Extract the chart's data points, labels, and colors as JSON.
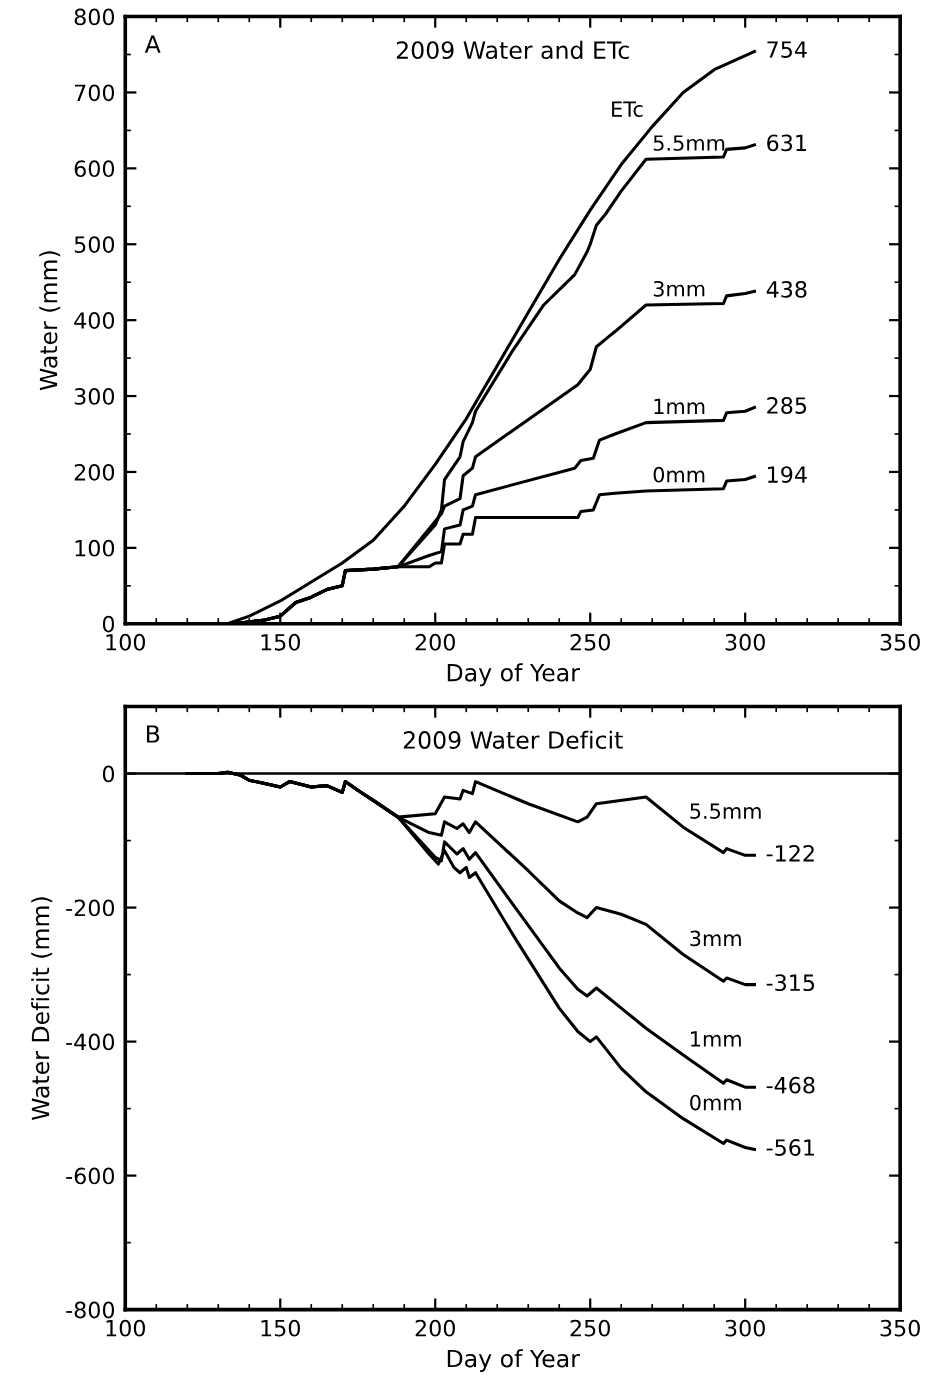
{
  "chart_data": [
    {
      "type": "line",
      "title": "2009 Water and ETc",
      "xlabel": "Day of Year",
      "ylabel": "Water (mm)",
      "xlim": [
        100,
        350
      ],
      "xticks": [
        100,
        150,
        200,
        250,
        300,
        350
      ],
      "ylim": [
        0,
        800
      ],
      "yticks": [
        0,
        100,
        200,
        300,
        400,
        500,
        600,
        700,
        800
      ],
      "grid": false,
      "legend": false,
      "marker": "none",
      "line_style": "solid",
      "annotations": [
        "A"
      ],
      "series": [
        {
          "name": "ETc",
          "color": "#000000",
          "x": [
            133,
            140,
            150,
            160,
            170,
            180,
            190,
            200,
            210,
            220,
            230,
            240,
            250,
            260,
            270,
            280,
            290,
            303
          ],
          "values": [
            0,
            10,
            30,
            55,
            80,
            110,
            155,
            210,
            270,
            340,
            410,
            480,
            545,
            605,
            655,
            700,
            730,
            754
          ],
          "value_labels": [
            null,
            null,
            null,
            null,
            null,
            null,
            null,
            null,
            null,
            null,
            null,
            null,
            null,
            null,
            null,
            null,
            null,
            "754"
          ]
        },
        {
          "name": "5.5mm",
          "color": "#000000",
          "x": [
            120,
            135,
            145,
            150,
            155,
            160,
            165,
            170,
            171,
            180,
            188,
            200,
            202,
            203,
            208,
            209,
            212,
            213,
            225,
            235,
            245,
            249,
            250,
            252,
            255,
            260,
            268,
            293,
            294,
            300,
            303
          ],
          "values": [
            0,
            0,
            5,
            10,
            28,
            35,
            45,
            50,
            70,
            72,
            75,
            130,
            150,
            190,
            220,
            240,
            265,
            280,
            360,
            420,
            460,
            490,
            500,
            525,
            540,
            570,
            612,
            615,
            625,
            627,
            631
          ],
          "value_labels": [
            null,
            null,
            null,
            null,
            null,
            null,
            null,
            null,
            null,
            null,
            null,
            null,
            null,
            null,
            null,
            null,
            null,
            null,
            null,
            null,
            null,
            null,
            null,
            null,
            null,
            null,
            null,
            null,
            null,
            null,
            "631"
          ]
        },
        {
          "name": "3mm",
          "color": "#000000",
          "x": [
            120,
            135,
            145,
            150,
            155,
            160,
            165,
            170,
            171,
            180,
            188,
            202,
            203,
            208,
            209,
            212,
            213,
            246,
            248,
            250,
            252,
            255,
            258,
            268,
            293,
            294,
            300,
            303
          ],
          "values": [
            0,
            0,
            5,
            10,
            28,
            35,
            45,
            50,
            70,
            72,
            75,
            145,
            155,
            165,
            195,
            205,
            220,
            315,
            325,
            335,
            365,
            375,
            385,
            420,
            422,
            432,
            435,
            438
          ],
          "value_labels": [
            null,
            null,
            null,
            null,
            null,
            null,
            null,
            null,
            null,
            null,
            null,
            null,
            null,
            null,
            null,
            null,
            null,
            null,
            null,
            null,
            null,
            null,
            null,
            null,
            null,
            null,
            null,
            "438"
          ]
        },
        {
          "name": "1mm",
          "color": "#000000",
          "x": [
            120,
            135,
            145,
            150,
            155,
            160,
            165,
            170,
            171,
            180,
            188,
            198,
            202,
            203,
            208,
            209,
            212,
            213,
            245,
            247,
            251,
            253,
            258,
            268,
            293,
            294,
            300,
            303
          ],
          "values": [
            0,
            0,
            5,
            10,
            28,
            35,
            45,
            50,
            70,
            72,
            75,
            90,
            95,
            125,
            130,
            150,
            155,
            170,
            205,
            215,
            218,
            242,
            250,
            265,
            268,
            278,
            280,
            285
          ],
          "value_labels": [
            null,
            null,
            null,
            null,
            null,
            null,
            null,
            null,
            null,
            null,
            null,
            null,
            null,
            null,
            null,
            null,
            null,
            null,
            null,
            null,
            null,
            null,
            null,
            null,
            null,
            null,
            null,
            "285"
          ]
        },
        {
          "name": "0mm",
          "color": "#000000",
          "x": [
            120,
            135,
            145,
            150,
            155,
            160,
            165,
            170,
            171,
            180,
            188,
            198,
            200,
            202,
            203,
            208,
            209,
            212,
            213,
            246,
            247,
            251,
            253,
            258,
            268,
            293,
            294,
            300,
            303
          ],
          "values": [
            0,
            0,
            5,
            10,
            28,
            35,
            45,
            50,
            70,
            72,
            75,
            75,
            80,
            80,
            105,
            105,
            118,
            118,
            140,
            140,
            148,
            150,
            170,
            172,
            175,
            178,
            188,
            190,
            194
          ],
          "value_labels": [
            null,
            null,
            null,
            null,
            null,
            null,
            null,
            null,
            null,
            null,
            null,
            null,
            null,
            null,
            null,
            null,
            null,
            null,
            null,
            null,
            null,
            null,
            null,
            null,
            null,
            null,
            null,
            null,
            "194"
          ]
        }
      ]
    },
    {
      "type": "line",
      "title": "2009 Water Deficit",
      "xlabel": "Day of Year",
      "ylabel": "Water Deficit (mm)",
      "xlim": [
        100,
        350
      ],
      "xticks": [
        100,
        150,
        200,
        250,
        300,
        350
      ],
      "ylim": [
        -800,
        100
      ],
      "yticks": [
        -800,
        -600,
        -400,
        -200,
        0
      ],
      "grid": false,
      "legend": false,
      "marker": "none",
      "line_style": "solid",
      "ref_lines": [
        {
          "axis": "y",
          "value": 0,
          "color": "#000000"
        }
      ],
      "annotations": [
        "B"
      ],
      "series": [
        {
          "name": "5.5mm",
          "color": "#000000",
          "x": [
            120,
            130,
            133,
            137,
            140,
            145,
            150,
            153,
            160,
            165,
            170,
            171,
            175,
            180,
            188,
            200,
            203,
            208,
            209,
            212,
            213,
            230,
            246,
            249,
            252,
            268,
            280,
            293,
            294,
            300,
            303
          ],
          "values": [
            0,
            0,
            2,
            -2,
            -10,
            -15,
            -20,
            -12,
            -20,
            -18,
            -28,
            -12,
            -25,
            -40,
            -65,
            -60,
            -35,
            -38,
            -25,
            -30,
            -12,
            -45,
            -72,
            -65,
            -45,
            -35,
            -80,
            -118,
            -112,
            -122,
            -122
          ],
          "value_labels": [
            null,
            null,
            null,
            null,
            null,
            null,
            null,
            null,
            null,
            null,
            null,
            null,
            null,
            null,
            null,
            null,
            null,
            null,
            null,
            null,
            null,
            null,
            null,
            null,
            null,
            null,
            null,
            null,
            null,
            null,
            "-122"
          ]
        },
        {
          "name": "3mm",
          "color": "#000000",
          "x": [
            120,
            130,
            133,
            137,
            140,
            145,
            150,
            153,
            160,
            165,
            170,
            171,
            175,
            180,
            188,
            198,
            202,
            203,
            207,
            209,
            211,
            213,
            230,
            240,
            246,
            249,
            252,
            260,
            268,
            280,
            293,
            294,
            300,
            303
          ],
          "values": [
            0,
            0,
            2,
            -2,
            -10,
            -15,
            -20,
            -12,
            -20,
            -18,
            -28,
            -12,
            -25,
            -40,
            -65,
            -88,
            -92,
            -72,
            -82,
            -75,
            -88,
            -72,
            -145,
            -190,
            -208,
            -215,
            -200,
            -210,
            -225,
            -270,
            -310,
            -305,
            -315,
            -315
          ],
          "value_labels": [
            null,
            null,
            null,
            null,
            null,
            null,
            null,
            null,
            null,
            null,
            null,
            null,
            null,
            null,
            null,
            null,
            null,
            null,
            null,
            null,
            null,
            null,
            null,
            null,
            null,
            null,
            null,
            null,
            null,
            null,
            null,
            null,
            null,
            "-315"
          ]
        },
        {
          "name": "1mm",
          "color": "#000000",
          "x": [
            120,
            130,
            133,
            137,
            140,
            145,
            150,
            153,
            160,
            165,
            170,
            171,
            175,
            180,
            188,
            200,
            202,
            203,
            207,
            209,
            211,
            213,
            225,
            240,
            246,
            249,
            252,
            260,
            268,
            280,
            293,
            294,
            300,
            303
          ],
          "values": [
            0,
            0,
            2,
            -2,
            -10,
            -15,
            -20,
            -12,
            -20,
            -18,
            -28,
            -12,
            -25,
            -40,
            -65,
            -125,
            -130,
            -102,
            -120,
            -112,
            -128,
            -118,
            -195,
            -290,
            -322,
            -332,
            -320,
            -350,
            -380,
            -420,
            -462,
            -457,
            -468,
            -468
          ],
          "value_labels": [
            null,
            null,
            null,
            null,
            null,
            null,
            null,
            null,
            null,
            null,
            null,
            null,
            null,
            null,
            null,
            null,
            null,
            null,
            null,
            null,
            null,
            null,
            null,
            null,
            null,
            null,
            null,
            null,
            null,
            null,
            null,
            null,
            null,
            "-468"
          ]
        },
        {
          "name": "0mm",
          "color": "#000000",
          "x": [
            120,
            130,
            133,
            137,
            140,
            145,
            150,
            153,
            160,
            165,
            170,
            171,
            175,
            180,
            188,
            198,
            201,
            203,
            206,
            208,
            210,
            211,
            213,
            225,
            240,
            246,
            250,
            252,
            260,
            268,
            280,
            293,
            294,
            300,
            303
          ],
          "values": [
            0,
            0,
            2,
            -2,
            -10,
            -15,
            -20,
            -12,
            -20,
            -18,
            -28,
            -12,
            -25,
            -40,
            -65,
            -120,
            -135,
            -115,
            -140,
            -148,
            -140,
            -155,
            -148,
            -240,
            -350,
            -385,
            -400,
            -393,
            -440,
            -475,
            -515,
            -552,
            -547,
            -558,
            -561
          ],
          "value_labels": [
            null,
            null,
            null,
            null,
            null,
            null,
            null,
            null,
            null,
            null,
            null,
            null,
            null,
            null,
            null,
            null,
            null,
            null,
            null,
            null,
            null,
            null,
            null,
            null,
            null,
            null,
            null,
            null,
            null,
            null,
            null,
            null,
            null,
            null,
            "-561"
          ]
        }
      ]
    }
  ]
}
